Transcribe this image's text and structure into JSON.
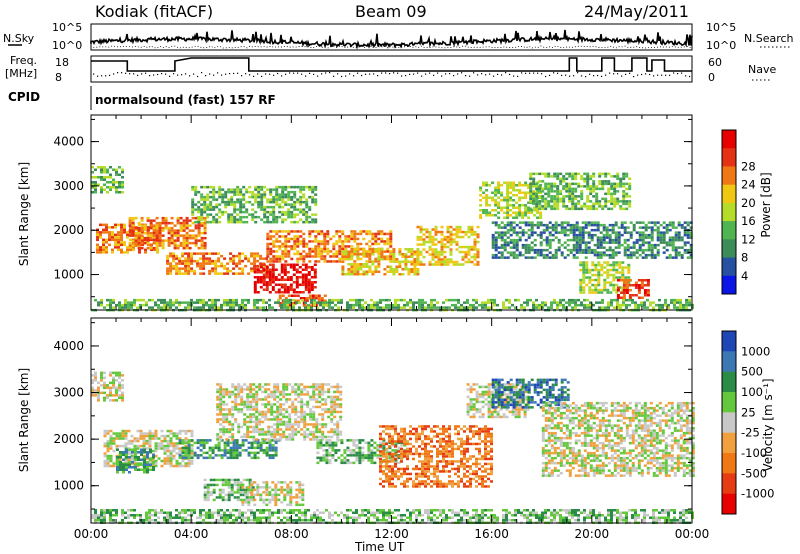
{
  "header": {
    "station": "Kodiak (fitACF)",
    "beam": "Beam 09",
    "date": "24/May/2011"
  },
  "noise_panel": {
    "left_label": "N.Sky",
    "right_label": "N.Search",
    "tick_top": "10^5",
    "tick_bottom": "10^0"
  },
  "freq_panel": {
    "left_label_1": "Freq.",
    "left_label_2": "[MHz]",
    "right_label": "Nave",
    "left_ticks": [
      "18",
      "8"
    ],
    "right_ticks": [
      "60",
      "0"
    ]
  },
  "cpid": {
    "label": "CPID",
    "text": "normalsound (fast) 157 RF"
  },
  "colors": {
    "power": [
      "#0a14e6",
      "#2850a0",
      "#3c8c5a",
      "#50b450",
      "#b4dc28",
      "#f0c814",
      "#f07814",
      "#e63214",
      "#e60000"
    ],
    "velocity": [
      "#1e46b4",
      "#3c78b4",
      "#2a8c46",
      "#64c83c",
      "#c8c8c8",
      "#f0a03c",
      "#f07814",
      "#e63c14",
      "#e60000"
    ]
  },
  "chart_data": [
    {
      "type": "heatmap",
      "title": "",
      "xlabel": "",
      "ylabel": "Slant Range [km]",
      "colorbar_label": "Power [dB]",
      "colorbar_ticks": [
        "4",
        "8",
        "12",
        "16",
        "20",
        "24",
        "28"
      ],
      "xlim": [
        0,
        24
      ],
      "ylim": [
        200,
        4600
      ],
      "yticks": [
        "1000",
        "2000",
        "3000",
        "4000"
      ],
      "xticks": [
        "00:00",
        "04:00",
        "08:00",
        "12:00",
        "16:00",
        "20:00",
        "00:00"
      ],
      "regions": [
        {
          "x": [
            0,
            1.3
          ],
          "y": [
            2850,
            3450
          ],
          "value": 3
        },
        {
          "x": [
            0.2,
            2.6
          ],
          "y": [
            1500,
            2150
          ],
          "value": 6
        },
        {
          "x": [
            1.5,
            4.5
          ],
          "y": [
            1600,
            2300
          ],
          "value": 6
        },
        {
          "x": [
            3.0,
            7.0
          ],
          "y": [
            1000,
            1500
          ],
          "value": 6
        },
        {
          "x": [
            6.5,
            9.0
          ],
          "y": [
            600,
            1250
          ],
          "value": 8
        },
        {
          "x": [
            7.5,
            9.5
          ],
          "y": [
            300,
            550
          ],
          "value": 7
        },
        {
          "x": [
            4.0,
            9.0
          ],
          "y": [
            2200,
            3000
          ],
          "value": 3
        },
        {
          "x": [
            7.0,
            12.0
          ],
          "y": [
            1300,
            2000
          ],
          "value": 6
        },
        {
          "x": [
            10.0,
            13.0
          ],
          "y": [
            1000,
            1600
          ],
          "value": 5
        },
        {
          "x": [
            13.0,
            15.5
          ],
          "y": [
            1200,
            2100
          ],
          "value": 5
        },
        {
          "x": [
            15.5,
            18.0
          ],
          "y": [
            2300,
            3100
          ],
          "value": 4
        },
        {
          "x": [
            17.5,
            21.5
          ],
          "y": [
            2500,
            3300
          ],
          "value": 3
        },
        {
          "x": [
            16.0,
            24.0
          ],
          "y": [
            1400,
            2200
          ],
          "value": 2
        },
        {
          "x": [
            19.5,
            21.5
          ],
          "y": [
            600,
            1300
          ],
          "value": 4
        },
        {
          "x": [
            21.0,
            22.2
          ],
          "y": [
            500,
            900
          ],
          "value": 7
        },
        {
          "x": [
            0,
            24
          ],
          "y": [
            200,
            450
          ],
          "value": 3
        }
      ]
    },
    {
      "type": "heatmap",
      "title": "",
      "xlabel": "Time UT",
      "ylabel": "Slant Range [km]",
      "colorbar_label": "Velocity [m s⁻¹]",
      "colorbar_ticks": [
        "1000",
        "500",
        "100",
        "25",
        "-25",
        "-100",
        "-500",
        "-1000"
      ],
      "xlim": [
        0,
        24
      ],
      "ylim": [
        200,
        4600
      ],
      "yticks": [
        "1000",
        "2000",
        "3000",
        "4000"
      ],
      "xticks": [
        "00:00",
        "04:00",
        "08:00",
        "12:00",
        "16:00",
        "20:00",
        "00:00"
      ],
      "regions": [
        {
          "x": [
            0,
            1.3
          ],
          "y": [
            2850,
            3450
          ],
          "value": 4
        },
        {
          "x": [
            0.5,
            4.0
          ],
          "y": [
            1400,
            2200
          ],
          "value": 4
        },
        {
          "x": [
            1.0,
            2.5
          ],
          "y": [
            1300,
            1800
          ],
          "value": 2
        },
        {
          "x": [
            3.5,
            7.5
          ],
          "y": [
            1600,
            2000
          ],
          "value": 2
        },
        {
          "x": [
            4.5,
            6.5
          ],
          "y": [
            700,
            1150
          ],
          "value": 3
        },
        {
          "x": [
            6.0,
            8.5
          ],
          "y": [
            600,
            1100
          ],
          "value": 4
        },
        {
          "x": [
            5.0,
            10.0
          ],
          "y": [
            2000,
            3200
          ],
          "value": 4
        },
        {
          "x": [
            9.0,
            12.5
          ],
          "y": [
            1500,
            2000
          ],
          "value": 3
        },
        {
          "x": [
            11.5,
            16.0
          ],
          "y": [
            1000,
            2300
          ],
          "value": 6
        },
        {
          "x": [
            15.0,
            17.5
          ],
          "y": [
            2500,
            3200
          ],
          "value": 4
        },
        {
          "x": [
            16.0,
            19.0
          ],
          "y": [
            2700,
            3300
          ],
          "value": 1
        },
        {
          "x": [
            18.0,
            24.0
          ],
          "y": [
            1200,
            2800
          ],
          "value": 4
        },
        {
          "x": [
            0,
            24
          ],
          "y": [
            200,
            500
          ],
          "value": 3
        }
      ]
    }
  ]
}
